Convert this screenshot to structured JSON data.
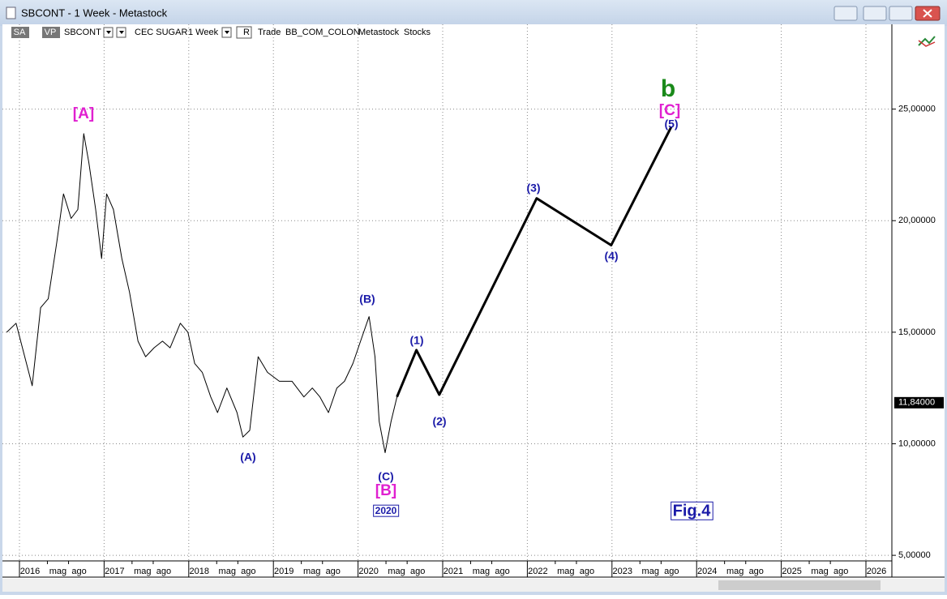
{
  "window": {
    "title": "SBCONT - 1 Week - Metastock"
  },
  "toolbar": [
    "SA",
    "VP",
    "SBCONT",
    "CEC SUGAR",
    "1 Week",
    "R",
    "Trade",
    "BB_COM_COLON",
    "Metastock",
    "Stocks"
  ],
  "chart_data": {
    "type": "line",
    "series": [
      {
        "color": "#000000",
        "x": [
          2015.85,
          2015.96,
          2016.11,
          2016.15,
          2016.25,
          2016.34,
          2016.44,
          2016.52,
          2016.61,
          2016.69,
          2016.76,
          2016.82,
          2016.9,
          2016.97,
          2017.03,
          2017.11,
          2017.21,
          2017.3,
          2017.4,
          2017.49,
          2017.59,
          2017.69,
          2017.78,
          2017.9,
          2017.99,
          2018.07,
          2018.16,
          2018.26,
          2018.34,
          2018.45,
          2018.57,
          2018.64,
          2018.72,
          2018.82,
          2018.93,
          2019.07,
          2019.22,
          2019.36,
          2019.46,
          2019.55,
          2019.65,
          2019.75,
          2019.84,
          2019.94,
          2020.03,
          2020.13,
          2020.2,
          2020.25,
          2020.32,
          2020.39,
          2020.46
        ],
        "values": [
          15.0,
          15.4,
          13.2,
          12.6,
          16.1,
          16.5,
          19.0,
          21.2,
          20.1,
          20.5,
          23.9,
          22.6,
          20.5,
          18.3,
          21.2,
          20.5,
          18.3,
          16.8,
          14.6,
          13.9,
          14.3,
          14.6,
          14.3,
          15.4,
          15.0,
          13.6,
          13.2,
          12.1,
          11.4,
          12.5,
          11.4,
          10.3,
          10.6,
          13.9,
          13.2,
          12.8,
          12.8,
          12.1,
          12.5,
          12.1,
          11.4,
          12.5,
          12.8,
          13.6,
          14.6,
          15.7,
          13.9,
          11.0,
          9.6,
          11.0,
          12.1
        ]
      },
      {
        "color": "#000000",
        "x": [
          2020.46,
          2020.69,
          2020.96,
          2022.11,
          2022.99,
          2023.7
        ],
        "values": [
          12.1,
          14.2,
          12.2,
          21.0,
          18.9,
          24.2
        ]
      }
    ],
    "annotations": [
      "[A]",
      "(A)",
      "(B)",
      "(C)",
      "[B]",
      "2020",
      "(1)",
      "(2)",
      "(3)",
      "(4)",
      "(5)",
      "b",
      "[C]",
      "Fig.4"
    ],
    "last_price": {
      "value": 11.84,
      "label": "11,84000"
    },
    "xlim": [
      2015.85,
      2026.31
    ],
    "xticks": [
      2016,
      {
        "value": 2016.33,
        "label": "mag"
      },
      {
        "value": 2016.58,
        "label": "ago"
      },
      2017,
      {
        "value": 2017.33,
        "label": "mag"
      },
      {
        "value": 2017.58,
        "label": "ago"
      },
      2018,
      {
        "value": 2018.33,
        "label": "mag"
      },
      {
        "value": 2018.58,
        "label": "ago"
      },
      2019,
      {
        "value": 2019.33,
        "label": "mag"
      },
      {
        "value": 2019.58,
        "label": "ago"
      },
      2020,
      {
        "value": 2020.33,
        "label": "mag"
      },
      {
        "value": 2020.58,
        "label": "ago"
      },
      2021,
      {
        "value": 2021.33,
        "label": "mag"
      },
      {
        "value": 2021.58,
        "label": "ago"
      },
      2022,
      {
        "value": 2022.33,
        "label": "mag"
      },
      {
        "value": 2022.58,
        "label": "ago"
      },
      2023,
      {
        "value": 2023.33,
        "label": "mag"
      },
      {
        "value": 2023.58,
        "label": "ago"
      },
      2024,
      {
        "value": 2024.33,
        "label": "mag"
      },
      {
        "value": 2024.58,
        "label": "ago"
      },
      2025,
      {
        "value": 2025.33,
        "label": "mag"
      },
      {
        "value": 2025.58,
        "label": "ago"
      },
      2026
    ],
    "ylim": [
      4.75,
      28.8
    ],
    "yticks": [
      {
        "value": 5,
        "label": "5,00000"
      },
      {
        "value": 10,
        "label": "10,00000"
      },
      {
        "value": 15,
        "label": "15,00000"
      },
      {
        "value": 20,
        "label": "20,00000"
      },
      {
        "value": 25,
        "label": "25,00000"
      }
    ],
    "grid": true
  }
}
